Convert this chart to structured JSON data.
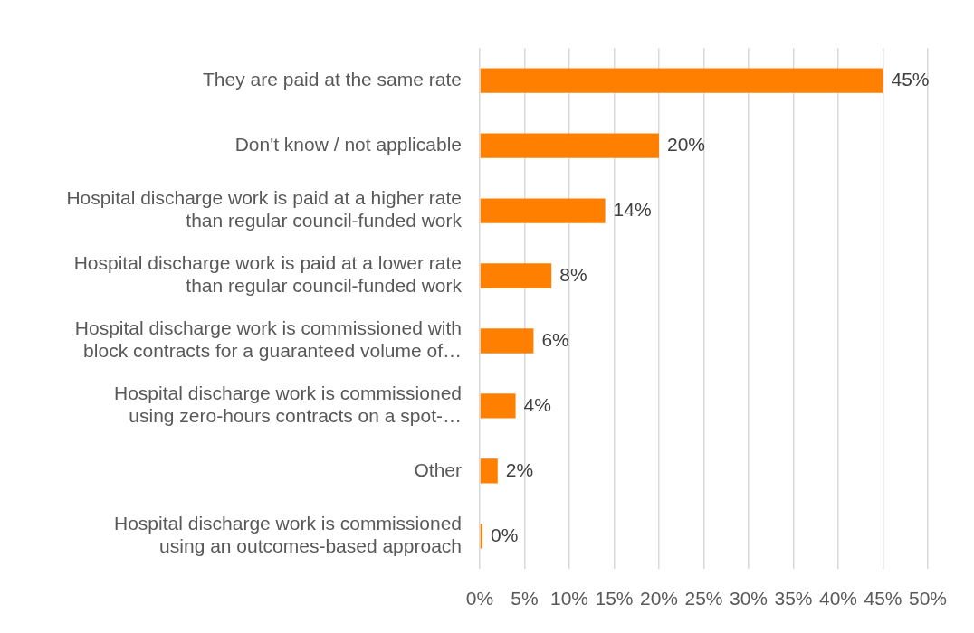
{
  "chart_data": {
    "type": "bar",
    "orientation": "horizontal",
    "categories": [
      "They are paid at the same rate",
      "Don't know / not applicable",
      "Hospital discharge work is paid at a higher rate than regular council-funded work",
      "Hospital discharge work is paid at a lower rate than regular council-funded work",
      "Hospital discharge work is commissioned with block contracts for a guaranteed volume of…",
      "Hospital discharge work is commissioned using zero-hours contracts on a spot-…",
      "Other",
      "Hospital discharge work is commissioned using an outcomes-based approach"
    ],
    "values": [
      45,
      20,
      14,
      8,
      6,
      4,
      2,
      0.3
    ],
    "value_labels": [
      "45%",
      "20%",
      "14%",
      "8%",
      "6%",
      "4%",
      "2%",
      "0%"
    ],
    "color": "#ff8000",
    "xlim": [
      0,
      50
    ],
    "xticks": [
      {
        "value": 0,
        "label": "0%"
      },
      {
        "value": 5,
        "label": "5%"
      },
      {
        "value": 10,
        "label": "10%"
      },
      {
        "value": 15,
        "label": "15%"
      },
      {
        "value": 20,
        "label": "20%"
      },
      {
        "value": 25,
        "label": "25%"
      },
      {
        "value": 30,
        "label": "30%"
      },
      {
        "value": 35,
        "label": "35%"
      },
      {
        "value": 40,
        "label": "40%"
      },
      {
        "value": 45,
        "label": "45%"
      },
      {
        "value": 50,
        "label": "50%"
      }
    ],
    "grid": "x"
  }
}
